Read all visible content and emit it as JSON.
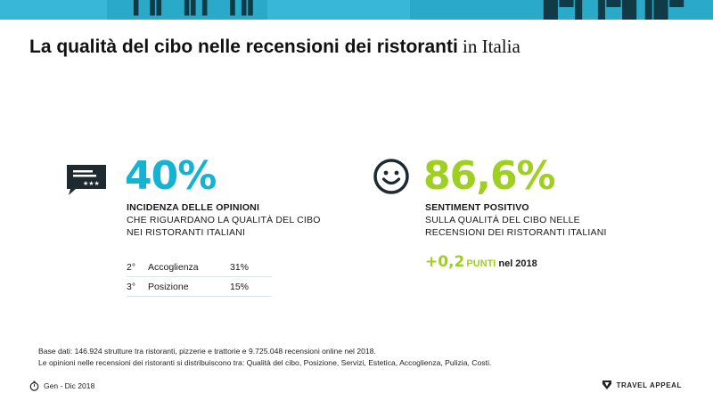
{
  "title": {
    "bold_part": "La qualità del cibo nelle recensioni dei ristoranti",
    "serif_part": " in Italia"
  },
  "left_stat": {
    "value": "40%",
    "heading": "INCIDENZA DELLE OPINIONI",
    "line1": "CHE RIGUARDANO LA QUALITÀ DEL CIBO",
    "line2": "NEI RISTORANTI ITALIANI",
    "icon": "review-card-icon",
    "rankings": [
      {
        "position": "2°",
        "label": "Accoglienza",
        "value": "31%"
      },
      {
        "position": "3°",
        "label": "Posizione",
        "value": "15%"
      }
    ]
  },
  "right_stat": {
    "value": "86,6%",
    "heading": "SENTIMENT POSITIVO",
    "line1": "SULLA QUALITÀ DEL CIBO NELLE",
    "line2": "RECENSIONI DEI RISTORANTI ITALIANI",
    "icon": "smiley-face-icon",
    "delta": {
      "value": "+0,2",
      "unit": "PUNTI",
      "suffix": "nel 2018"
    }
  },
  "source": {
    "line1": "Base dati: 146.924 strutture tra ristoranti, pizzerie e trattorie e 9.725.048 recensioni online nel 2018.",
    "line2": "Le opinioni nelle recensioni dei ristoranti si distribuiscono tra: Qualità del cibo, Posizione, Servizi, Estetica, Accoglienza, Pulizia, Costi."
  },
  "footer": {
    "period": "Gen - Dic 2018",
    "period_icon": "stopwatch-icon",
    "brand": "TRAVEL APPEAL",
    "brand_icon": "travel-appeal-logo-icon"
  },
  "colors": {
    "accent_blue": "#14b3d2",
    "accent_green": "#9fcf1f",
    "band_blue": "#2ba9c9"
  }
}
